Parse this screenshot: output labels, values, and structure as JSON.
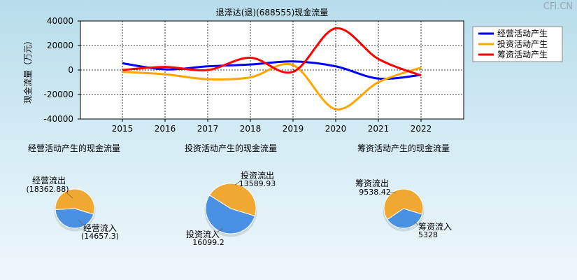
{
  "watermark": "CFi.CN",
  "chart_data": [
    {
      "type": "line",
      "title": "退泽达(退)(688555)现金流量",
      "xlabel": "",
      "ylabel": "现金流量（万元）",
      "x": [
        "2015",
        "2016",
        "2017",
        "2018",
        "2019",
        "2020",
        "2021",
        "2022"
      ],
      "ylim": [
        -40000,
        40000
      ],
      "yticks": [
        40000,
        20000,
        0,
        -20000,
        -40000
      ],
      "ytick_labels": [
        "40000",
        "20000",
        "0",
        "-20000",
        "-40000"
      ],
      "grid": true,
      "legend_position": "top-right",
      "series": [
        {
          "name": "经营活动产生",
          "color": "#0000ff",
          "values": [
            5500,
            500,
            3000,
            4500,
            7000,
            3000,
            -7000,
            -4000
          ]
        },
        {
          "name": "投资活动产生",
          "color": "#ffa500",
          "values": [
            -1500,
            -3500,
            -7500,
            -6000,
            4000,
            -32000,
            -10000,
            2000
          ]
        },
        {
          "name": "筹资活动产生",
          "color": "#ff0000",
          "values": [
            0,
            2500,
            0,
            10000,
            -1500,
            34000,
            9000,
            -4500
          ]
        }
      ]
    },
    {
      "type": "pie",
      "title": "经营活动产生的现金流量",
      "labels": [
        "经营流出",
        "经营流入"
      ],
      "values": [
        18362.88,
        14657.3
      ],
      "value_labels": [
        "(18362.88)",
        "(14657.3)"
      ],
      "colors": [
        "#f0a830",
        "#4a90e2"
      ]
    },
    {
      "type": "pie",
      "title": "投资活动产生的现金流量",
      "labels": [
        "投资流出",
        "投资流入"
      ],
      "values": [
        13589.93,
        16099.2
      ],
      "value_labels": [
        "13589.93",
        "16099.2"
      ],
      "colors": [
        "#f0a830",
        "#4a90e2"
      ]
    },
    {
      "type": "pie",
      "title": "筹资活动产生的现金流量",
      "labels": [
        "筹资流出",
        "筹资流入"
      ],
      "values": [
        9538.42,
        5328
      ],
      "value_labels": [
        "9538.42",
        "5328"
      ],
      "colors": [
        "#f0a830",
        "#4a90e2"
      ]
    }
  ]
}
